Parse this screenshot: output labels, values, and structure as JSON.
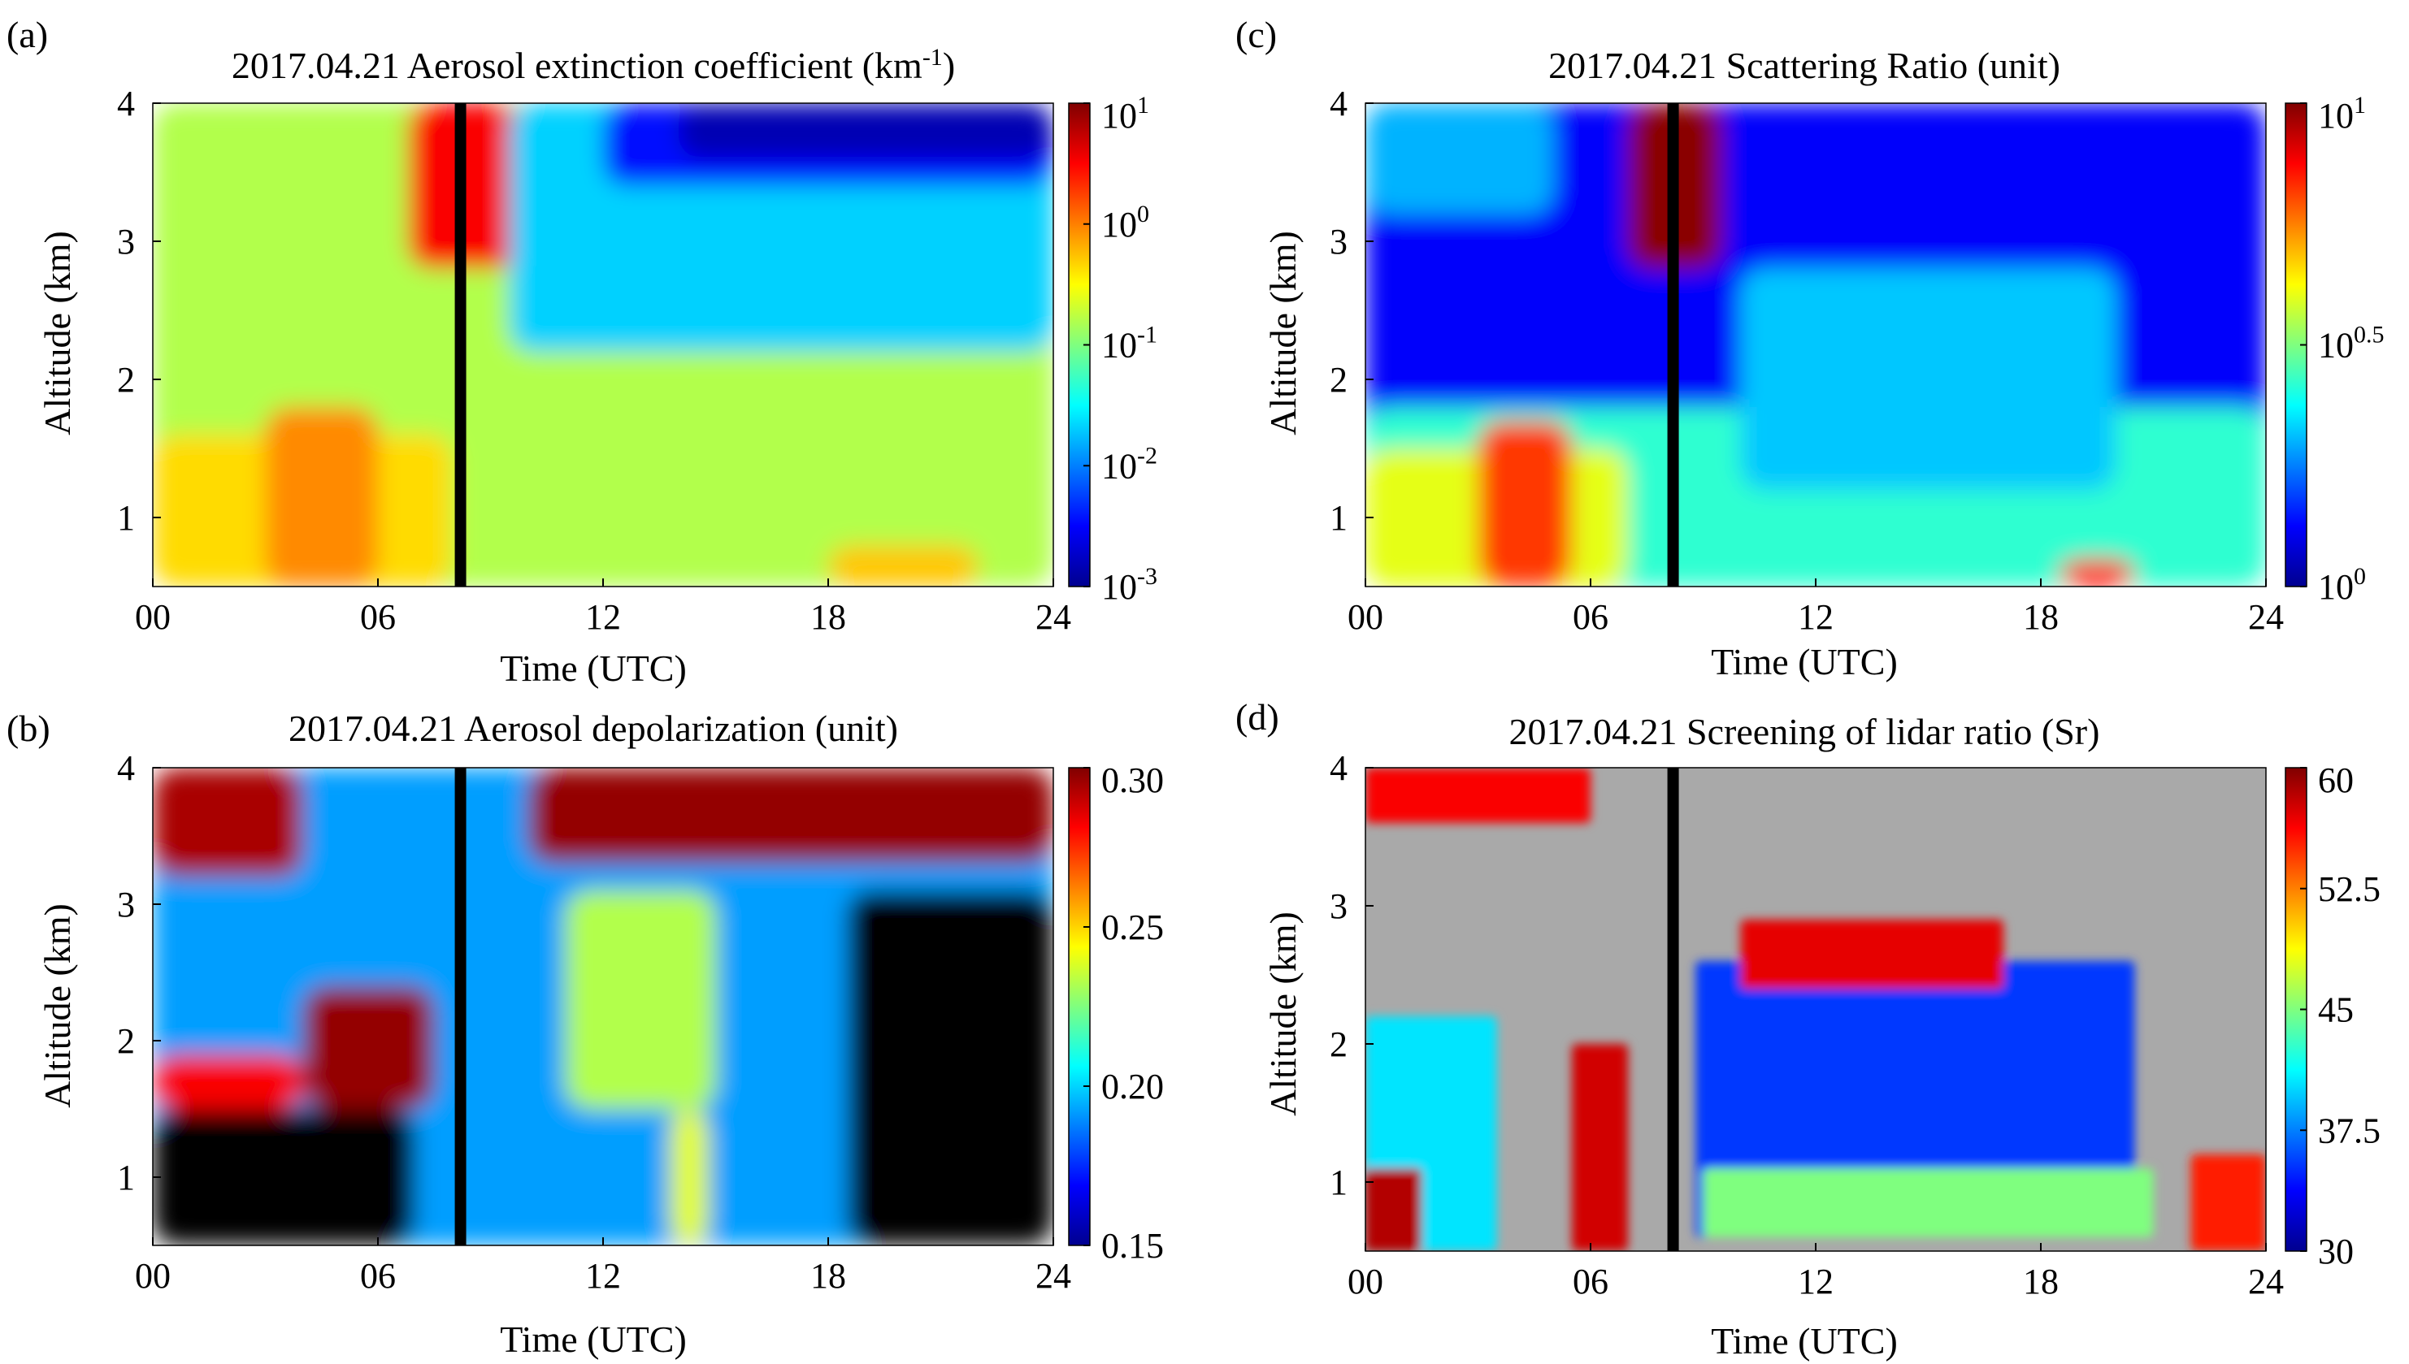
{
  "figure": {
    "type": "four-panel lidar time-height plot"
  },
  "chart_data": [
    {
      "type": "heatmap",
      "panel": "(a)",
      "title": "2017.04.21  Aerosol extinction coefficient (km",
      "title_sup": "-1",
      "title_close": ")",
      "xlabel": "Time (UTC)",
      "ylabel": "Altitude (km)",
      "x_ticks": [
        "00",
        "06",
        "12",
        "18",
        "24"
      ],
      "y_ticks": [
        "1",
        "2",
        "3",
        "4"
      ],
      "xlim": [
        0,
        24
      ],
      "ylim": [
        0.5,
        4
      ],
      "colorbar": {
        "scale": "log",
        "tick_bases": [
          "10",
          "10",
          "10",
          "10",
          "10"
        ],
        "tick_exps": [
          "1",
          "0",
          "-1",
          "-2",
          "-3"
        ],
        "tick_values": [
          10,
          1,
          0.1,
          0.01,
          0.001
        ],
        "range": [
          0.001,
          10
        ]
      },
      "colormap": "jet",
      "blank_time_utc": 8.2,
      "features": [
        {
          "t0": 0,
          "t1": 24,
          "z0": 0.5,
          "z1": 4,
          "level": 0.55
        },
        {
          "t0": 0,
          "t1": 8,
          "z0": 0.5,
          "z1": 1.6,
          "level": 0.66
        },
        {
          "t0": 3,
          "t1": 6,
          "z0": 0.5,
          "z1": 1.8,
          "level": 0.74
        },
        {
          "t0": 6.8,
          "t1": 9.8,
          "z0": 2.8,
          "z1": 4,
          "level": 0.88
        },
        {
          "t0": 9.5,
          "t1": 24,
          "z0": 2.2,
          "z1": 4,
          "level": 0.33
        },
        {
          "t0": 12,
          "t1": 24,
          "z0": 3.4,
          "z1": 4,
          "level": 0.14
        },
        {
          "t0": 14,
          "t1": 24,
          "z0": 3.6,
          "z1": 4,
          "level": 0.04
        },
        {
          "t0": 18,
          "t1": 22,
          "z0": 0.5,
          "z1": 0.8,
          "level": 0.68
        }
      ]
    },
    {
      "type": "heatmap",
      "panel": "(b)",
      "title": "2017.04.21  Aerosol depolarization (unit)",
      "xlabel": "Time (UTC)",
      "ylabel": "Altitude (km)",
      "x_ticks": [
        "00",
        "06",
        "12",
        "18",
        "24"
      ],
      "y_ticks": [
        "1",
        "2",
        "3",
        "4"
      ],
      "xlim": [
        0,
        24
      ],
      "ylim": [
        0.5,
        4
      ],
      "colorbar": {
        "scale": "linear",
        "tick_labels": [
          "0.30",
          "0.25",
          "0.20",
          "0.15"
        ],
        "tick_values": [
          0.3,
          0.25,
          0.2,
          0.15
        ],
        "range": [
          0.15,
          0.3
        ]
      },
      "colormap": "jet",
      "blank_time_utc": 8.2,
      "features": [
        {
          "t0": 0,
          "t1": 24,
          "z0": 0.5,
          "z1": 4,
          "level": 0.28
        },
        {
          "t0": 0,
          "t1": 7,
          "z0": 0.5,
          "z1": 1.5,
          "level": -1
        },
        {
          "t0": 18.5,
          "t1": 24,
          "z0": 0.5,
          "z1": 3.1,
          "level": -1
        },
        {
          "t0": 10,
          "t1": 24,
          "z0": 3.3,
          "z1": 4,
          "level": 0.98
        },
        {
          "t0": 0,
          "t1": 4,
          "z0": 3.2,
          "z1": 4,
          "level": 0.96
        },
        {
          "t0": 4,
          "t1": 7.5,
          "z0": 1.5,
          "z1": 2.4,
          "level": 0.98
        },
        {
          "t0": 0,
          "t1": 4,
          "z0": 1.5,
          "z1": 1.9,
          "level": 0.88
        },
        {
          "t0": 11,
          "t1": 15,
          "z0": 1.5,
          "z1": 3.1,
          "level": 0.55
        },
        {
          "t0": 13.8,
          "t1": 14.8,
          "z0": 0.5,
          "z1": 1.5,
          "level": 0.6
        }
      ]
    },
    {
      "type": "heatmap",
      "panel": "(c)",
      "title": "2017.04.21  Scattering Ratio (unit)",
      "xlabel": "Time (UTC)",
      "ylabel": "Altitude (km)",
      "x_ticks": [
        "00",
        "06",
        "12",
        "18",
        "24"
      ],
      "y_ticks": [
        "1",
        "2",
        "3",
        "4"
      ],
      "xlim": [
        0,
        24
      ],
      "ylim": [
        0.5,
        4
      ],
      "colorbar": {
        "scale": "log",
        "tick_bases": [
          "10",
          "10",
          "10"
        ],
        "tick_exps": [
          "1",
          "0.5",
          "0"
        ],
        "tick_values": [
          10,
          3.162,
          1
        ],
        "range": [
          1,
          10
        ]
      },
      "colormap": "jet",
      "blank_time_utc": 8.2,
      "features": [
        {
          "t0": 0,
          "t1": 24,
          "z0": 0.5,
          "z1": 4,
          "level": 0.12
        },
        {
          "t0": 0,
          "t1": 24,
          "z0": 0.5,
          "z1": 1.8,
          "level": 0.42
        },
        {
          "t0": 0,
          "t1": 7,
          "z0": 0.5,
          "z1": 1.5,
          "level": 0.6
        },
        {
          "t0": 3,
          "t1": 5.5,
          "z0": 0.5,
          "z1": 1.7,
          "level": 0.82
        },
        {
          "t0": 7,
          "t1": 9.5,
          "z0": 2.8,
          "z1": 4,
          "level": 0.99
        },
        {
          "t0": 10,
          "t1": 20,
          "z0": 1.2,
          "z1": 2.8,
          "level": 0.32
        },
        {
          "t0": 0,
          "t1": 5,
          "z0": 3.2,
          "z1": 4,
          "level": 0.3
        },
        {
          "t0": 18.5,
          "t1": 20.5,
          "z0": 0.5,
          "z1": 0.7,
          "level": 0.86
        }
      ]
    },
    {
      "type": "heatmap",
      "panel": "(d)",
      "title": "2017.04.21  Screening of lidar ratio (Sr)",
      "xlabel": "Time (UTC)",
      "ylabel": "Altitude (km)",
      "x_ticks": [
        "00",
        "06",
        "12",
        "18",
        "24"
      ],
      "y_ticks": [
        "1",
        "2",
        "3",
        "4"
      ],
      "xlim": [
        0,
        24
      ],
      "ylim": [
        0.5,
        4
      ],
      "colorbar": {
        "scale": "linear",
        "tick_labels": [
          "60",
          "52.5",
          "45",
          "37.5",
          "30"
        ],
        "tick_values": [
          60,
          52.5,
          45,
          37.5,
          30
        ],
        "range": [
          30,
          60
        ]
      },
      "colormap": "jet",
      "screened_color": "#a9a9a9",
      "blank_time_utc": 8.2,
      "features": [
        {
          "t0": 8.8,
          "t1": 20.5,
          "z0": 0.6,
          "z1": 2.6,
          "level": 0.18
        },
        {
          "t0": 10,
          "t1": 17,
          "z0": 2.4,
          "z1": 2.9,
          "level": 0.9
        },
        {
          "t0": 9,
          "t1": 21,
          "z0": 0.6,
          "z1": 1.1,
          "level": 0.5
        },
        {
          "t0": 0,
          "t1": 3.5,
          "z0": 0.5,
          "z1": 2.2,
          "level": 0.35
        },
        {
          "t0": 0,
          "t1": 1.5,
          "z0": 0.5,
          "z1": 1.1,
          "level": 0.95
        },
        {
          "t0": 0,
          "t1": 6,
          "z0": 3.6,
          "z1": 4,
          "level": 0.88
        },
        {
          "t0": 5.5,
          "t1": 7,
          "z0": 0.5,
          "z1": 2,
          "level": 0.92
        },
        {
          "t0": 22,
          "t1": 24,
          "z0": 0.5,
          "z1": 1.2,
          "level": 0.85
        }
      ]
    }
  ]
}
